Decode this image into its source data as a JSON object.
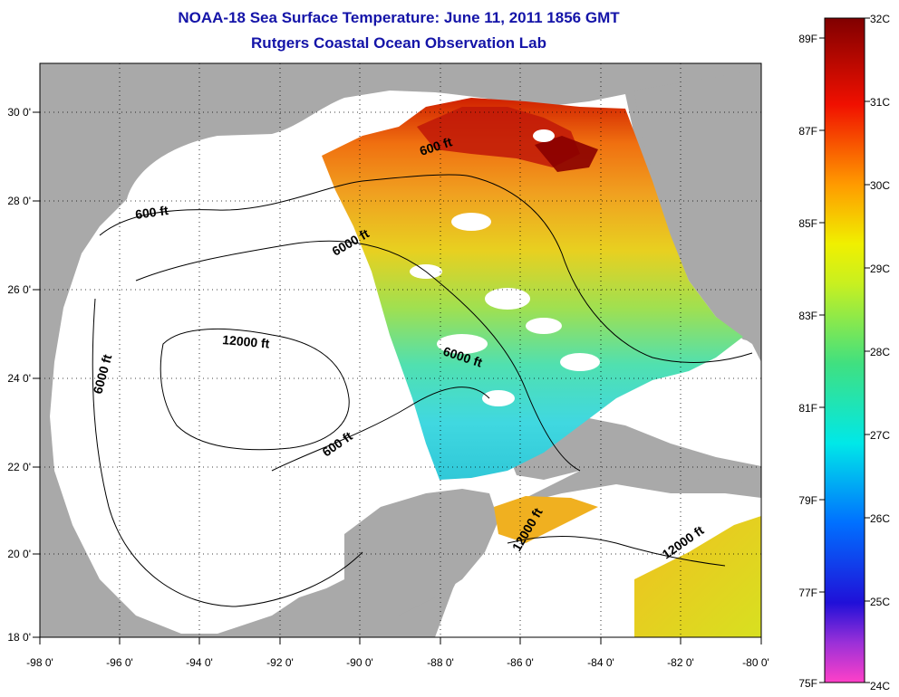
{
  "title": "NOAA-18 Sea Surface Temperature:  June 11, 2011 1856 GMT",
  "subtitle": "Rutgers Coastal Ocean Observation Lab",
  "x_ticks": [
    "-98 0'",
    "-96 0'",
    "-94 0'",
    "-92 0'",
    "-90 0'",
    "-88 0'",
    "-86 0'",
    "-84 0'",
    "-82 0'",
    "-80 0'"
  ],
  "y_ticks": [
    "30 0'",
    "28 0'",
    "26 0'",
    "24 0'",
    "22 0'",
    "20 0'",
    "18 0'"
  ],
  "contour_labels": [
    "600 ft",
    "600 ft",
    "600 ft",
    "6000 ft",
    "6000 ft",
    "6000 ft",
    "12000 ft",
    "12000 ft",
    "12000 ft"
  ],
  "colorbar": {
    "celsius": [
      "32C",
      "31C",
      "30C",
      "29C",
      "28C",
      "27C",
      "26C",
      "25C",
      "24C"
    ],
    "fahrenheit": [
      "89F",
      "87F",
      "85F",
      "83F",
      "81F",
      "79F",
      "77F",
      "75F"
    ]
  },
  "colors": {
    "land": "#a9a9a9",
    "title": "#1414a8",
    "ocean_nodata": "#ffffff"
  }
}
